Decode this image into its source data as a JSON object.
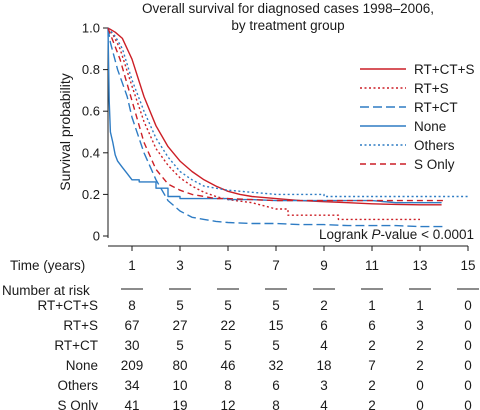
{
  "chart_data": {
    "type": "line",
    "title": "Overall survival for diagnosed cases 1998–2006,",
    "subtitle": "by treatment group",
    "xlabel": "Time (years)",
    "ylabel": "Survival probability",
    "xlim": [
      0,
      15
    ],
    "ylim": [
      0,
      1.0
    ],
    "x_ticks": [
      "1",
      "3",
      "5",
      "7",
      "9",
      "11",
      "13",
      "15"
    ],
    "y_ticks": [
      "0",
      "0.2",
      "0.4",
      "0.6",
      "0.8",
      "1.0"
    ],
    "legend_position": "top-right",
    "annotation_prefix": "Logrank ",
    "annotation_italic": "P",
    "annotation_suffix": "-value < 0.0001",
    "series": [
      {
        "name": "RT+CT+S",
        "color": "#cc1f26",
        "dash": "solid",
        "points": [
          [
            0,
            1.0
          ],
          [
            0.3,
            0.98
          ],
          [
            0.6,
            0.95
          ],
          [
            1,
            0.85
          ],
          [
            1.5,
            0.67
          ],
          [
            2,
            0.53
          ],
          [
            2.5,
            0.43
          ],
          [
            3,
            0.36
          ],
          [
            3.5,
            0.31
          ],
          [
            4,
            0.27
          ],
          [
            4.5,
            0.24
          ],
          [
            5,
            0.215
          ],
          [
            5.5,
            0.2
          ],
          [
            6,
            0.19
          ],
          [
            7,
            0.18
          ],
          [
            8,
            0.17
          ],
          [
            9,
            0.165
          ],
          [
            10,
            0.16
          ],
          [
            11,
            0.155
          ],
          [
            12,
            0.152
          ],
          [
            13,
            0.15
          ],
          [
            13.9,
            0.15
          ]
        ]
      },
      {
        "name": "RT+S",
        "color": "#cc1f26",
        "dash": "dot",
        "points": [
          [
            0,
            1.0
          ],
          [
            0.2,
            0.97
          ],
          [
            0.5,
            0.9
          ],
          [
            1,
            0.72
          ],
          [
            1.5,
            0.55
          ],
          [
            2,
            0.42
          ],
          [
            2.5,
            0.34
          ],
          [
            3,
            0.28
          ],
          [
            3.5,
            0.24
          ],
          [
            4,
            0.21
          ],
          [
            4.5,
            0.19
          ],
          [
            5,
            0.175
          ],
          [
            6,
            0.16
          ],
          [
            7,
            0.13
          ],
          [
            7.5,
            0.13
          ],
          [
            7.5,
            0.1
          ],
          [
            9,
            0.1
          ],
          [
            9.6,
            0.1
          ],
          [
            9.6,
            0.08
          ],
          [
            13,
            0.08
          ]
        ]
      },
      {
        "name": "RT+CT",
        "color": "#2e7cc4",
        "dash": "longdash",
        "points": [
          [
            0,
            1.0
          ],
          [
            0.1,
            0.93
          ],
          [
            0.4,
            0.8
          ],
          [
            0.8,
            0.67
          ],
          [
            1,
            0.57
          ],
          [
            1.5,
            0.4
          ],
          [
            2,
            0.27
          ],
          [
            2.5,
            0.17
          ],
          [
            3,
            0.12
          ],
          [
            3.5,
            0.09
          ],
          [
            4,
            0.08
          ],
          [
            4.5,
            0.07
          ],
          [
            5,
            0.065
          ],
          [
            6,
            0.06
          ],
          [
            7,
            0.06
          ],
          [
            8,
            0.055
          ],
          [
            9,
            0.055
          ],
          [
            10,
            0.05
          ],
          [
            11,
            0.05
          ],
          [
            12,
            0.05
          ],
          [
            13,
            0.045
          ],
          [
            14,
            0.045
          ]
        ]
      },
      {
        "name": "None",
        "color": "#2e7cc4",
        "dash": "solid",
        "points": [
          [
            0,
            1.0
          ],
          [
            0.05,
            0.65
          ],
          [
            0.1,
            0.5
          ],
          [
            0.2,
            0.45
          ],
          [
            0.3,
            0.39
          ],
          [
            0.4,
            0.36
          ],
          [
            0.6,
            0.33
          ],
          [
            0.8,
            0.3
          ],
          [
            1,
            0.27
          ],
          [
            1.3,
            0.27
          ],
          [
            1.3,
            0.26
          ],
          [
            2,
            0.26
          ],
          [
            2,
            0.23
          ],
          [
            2.5,
            0.23
          ],
          [
            2.5,
            0.19
          ],
          [
            3,
            0.19
          ],
          [
            3,
            0.18
          ],
          [
            5,
            0.18
          ],
          [
            5,
            0.175
          ],
          [
            6,
            0.175
          ],
          [
            7,
            0.17
          ],
          [
            8,
            0.17
          ],
          [
            9,
            0.17
          ],
          [
            10,
            0.17
          ],
          [
            11,
            0.17
          ],
          [
            12,
            0.16
          ],
          [
            13,
            0.16
          ],
          [
            13.9,
            0.16
          ]
        ]
      },
      {
        "name": "Others",
        "color": "#2e7cc4",
        "dash": "dot",
        "points": [
          [
            0,
            1.0
          ],
          [
            0.3,
            0.96
          ],
          [
            0.6,
            0.9
          ],
          [
            1,
            0.75
          ],
          [
            1.5,
            0.6
          ],
          [
            2,
            0.47
          ],
          [
            2.5,
            0.38
          ],
          [
            3,
            0.31
          ],
          [
            3.5,
            0.27
          ],
          [
            4,
            0.24
          ],
          [
            4.5,
            0.23
          ],
          [
            5,
            0.22
          ],
          [
            6,
            0.21
          ],
          [
            7,
            0.2
          ],
          [
            9,
            0.2
          ],
          [
            9,
            0.19
          ],
          [
            15,
            0.19
          ]
        ]
      },
      {
        "name": "S Only",
        "color": "#cc1f26",
        "dash": "dash",
        "points": [
          [
            0,
            1.0
          ],
          [
            0.2,
            0.94
          ],
          [
            0.5,
            0.85
          ],
          [
            1,
            0.65
          ],
          [
            1.5,
            0.45
          ],
          [
            2,
            0.32
          ],
          [
            2.5,
            0.25
          ],
          [
            3,
            0.22
          ],
          [
            3.5,
            0.2
          ],
          [
            4,
            0.19
          ],
          [
            4.5,
            0.18
          ],
          [
            5,
            0.18
          ],
          [
            6,
            0.175
          ],
          [
            7,
            0.17
          ],
          [
            9,
            0.17
          ],
          [
            12,
            0.17
          ],
          [
            14,
            0.17
          ]
        ]
      }
    ]
  },
  "risk_table": {
    "header": "Number at risk",
    "rows": [
      {
        "label": "RT+CT+S",
        "values": [
          "8",
          "5",
          "5",
          "5",
          "2",
          "1",
          "1",
          "0"
        ]
      },
      {
        "label": "RT+S",
        "values": [
          "67",
          "27",
          "22",
          "15",
          "6",
          "6",
          "3",
          "0"
        ]
      },
      {
        "label": "RT+CT",
        "values": [
          "30",
          "5",
          "5",
          "5",
          "4",
          "2",
          "2",
          "0"
        ]
      },
      {
        "label": "None",
        "values": [
          "209",
          "80",
          "46",
          "32",
          "18",
          "7",
          "2",
          "0"
        ]
      },
      {
        "label": "Others",
        "values": [
          "34",
          "10",
          "8",
          "6",
          "3",
          "2",
          "0",
          "0"
        ]
      },
      {
        "label": "S Only",
        "values": [
          "41",
          "19",
          "12",
          "8",
          "4",
          "2",
          "0",
          "0"
        ]
      }
    ]
  }
}
